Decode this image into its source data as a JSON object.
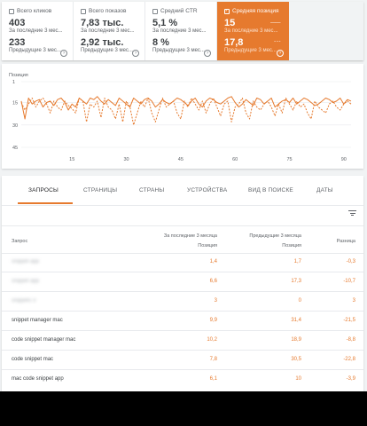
{
  "metrics": [
    {
      "label": "Всего кликов",
      "value": "403",
      "period": "За последние 3 мес...",
      "prev_value": "233",
      "prev_label": "Предыдущие 3 мес...",
      "checked": false
    },
    {
      "label": "Всего показов",
      "value": "7,83 тыс.",
      "period": "За последние 3 мес...",
      "prev_value": "2,92 тыс.",
      "prev_label": "Предыдущие 3 мес...",
      "checked": false
    },
    {
      "label": "Средний CTR",
      "value": "5,1 %",
      "period": "За последние 3 мес...",
      "prev_value": "8 %",
      "prev_label": "Предыдущие 3 мес...",
      "checked": false
    },
    {
      "label": "Средняя позиция",
      "value": "15",
      "period": "За последние 3 мес...",
      "prev_value": "17,8",
      "prev_label": "Предыдущие 3 мес...",
      "checked": true
    }
  ],
  "chart_data": {
    "type": "line",
    "ylabel": "Позиция",
    "y_ticks": [
      "1",
      "15",
      "30",
      "45"
    ],
    "x_ticks": [
      "15",
      "30",
      "45",
      "60",
      "75",
      "90"
    ],
    "ylim": [
      1,
      45
    ],
    "inverted_y": true,
    "xlim": [
      1,
      92
    ],
    "color": "#e67a2e",
    "series": [
      {
        "style": "solid",
        "values": [
          14,
          26,
          12,
          16,
          14,
          13,
          18,
          15,
          14,
          17,
          13,
          12,
          15,
          20,
          16,
          18,
          12,
          14,
          16,
          12,
          13,
          11,
          14,
          16,
          13,
          15,
          17,
          12,
          14,
          16,
          18,
          12,
          14,
          16,
          13,
          12,
          14,
          18,
          16,
          13,
          15,
          16,
          14,
          12,
          13,
          15,
          17,
          14,
          12,
          16,
          18,
          14,
          12,
          13,
          15,
          16,
          14,
          12,
          11,
          15,
          18,
          16,
          13,
          15,
          17,
          12,
          13,
          16,
          14,
          12,
          18,
          16,
          14,
          13,
          15,
          12,
          16,
          14,
          12,
          13,
          15,
          17,
          16,
          14,
          12,
          13,
          15,
          14,
          12,
          16,
          13,
          14
        ]
      },
      {
        "style": "dashed",
        "values": [
          15,
          20,
          16,
          12,
          18,
          14,
          12,
          16,
          22,
          14,
          18,
          20,
          14,
          17,
          19,
          22,
          12,
          14,
          28,
          16,
          18,
          14,
          25,
          12,
          18,
          20,
          26,
          16,
          28,
          14,
          18,
          30,
          22,
          14,
          18,
          12,
          22,
          28,
          20,
          12,
          18,
          16,
          14,
          22,
          26,
          14,
          18,
          12,
          16,
          20,
          14,
          22,
          16,
          12,
          18,
          24,
          16,
          14,
          28,
          18,
          16,
          12,
          22,
          26,
          14,
          18,
          20,
          16,
          14,
          18,
          24,
          16,
          22,
          12,
          16,
          20,
          14,
          18,
          16,
          22,
          26,
          14,
          18,
          20,
          22,
          16,
          14,
          18,
          20,
          16,
          14,
          16
        ]
      }
    ]
  },
  "tabs": [
    "ЗАПРОСЫ",
    "СТРАНИЦЫ",
    "СТРАНЫ",
    "УСТРОЙСТВА",
    "ВИД В ПОИСКЕ",
    "ДАТЫ"
  ],
  "table": {
    "col_query": "Запрос",
    "col_last_top": "За последние 3 месяца",
    "col_last_sub": "Позиция",
    "col_prev_top": "Предыдущие 3 месяца",
    "col_prev_sub": "Позиция",
    "col_diff": "Разница",
    "rows": [
      {
        "query": "snippet app",
        "last": "1,4",
        "prev": "1,7",
        "diff": "-0,3",
        "blurred": true
      },
      {
        "query": "snippet app",
        "last": "6,6",
        "prev": "17,3",
        "diff": "-10,7",
        "blurred": true
      },
      {
        "query": "snippets 3",
        "last": "3",
        "prev": "0",
        "diff": "3",
        "blurred": true
      },
      {
        "query": "snippet manager mac",
        "last": "9,9",
        "prev": "31,4",
        "diff": "-21,5",
        "blurred": false
      },
      {
        "query": "code snippet manager mac",
        "last": "10,2",
        "prev": "18,9",
        "diff": "-8,8",
        "blurred": false
      },
      {
        "query": "code snippet mac",
        "last": "7,8",
        "prev": "30,5",
        "diff": "-22,8",
        "blurred": false
      },
      {
        "query": "mac code snippet app",
        "last": "6,1",
        "prev": "10",
        "diff": "-3,9",
        "blurred": false
      }
    ]
  }
}
